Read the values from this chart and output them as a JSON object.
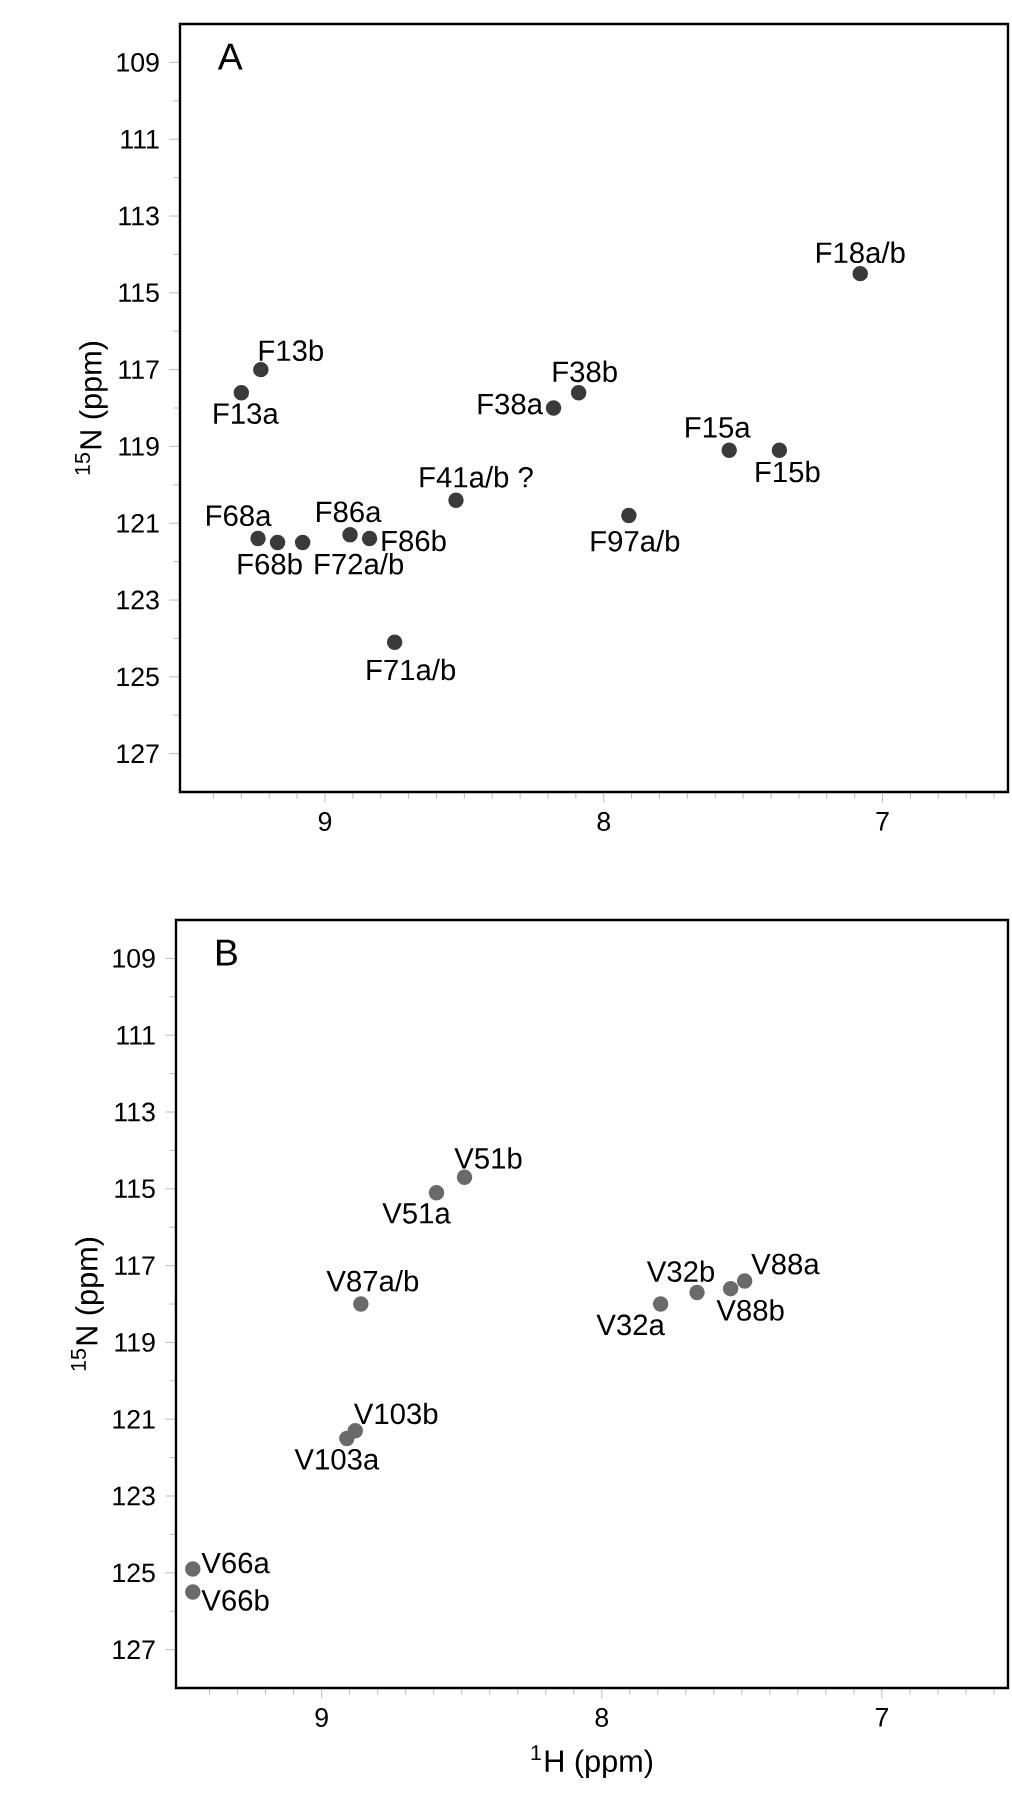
{
  "chart_data": [
    {
      "type": "scatter",
      "ylabel": "$^{15}$N (ppm)",
      "marker": "circle",
      "xlim": [
        9.52,
        6.55
      ],
      "ylim": [
        128,
        108
      ],
      "xticks": [
        9,
        8,
        7,
        {
          "value": 9.4,
          "label": null
        },
        {
          "value": 9.3,
          "label": null
        },
        {
          "value": 9.2,
          "label": null
        },
        {
          "value": 9.1,
          "label": null
        },
        {
          "value": 8.9,
          "label": null
        },
        {
          "value": 8.8,
          "label": null
        },
        {
          "value": 8.7,
          "label": null
        },
        {
          "value": 8.6,
          "label": null
        },
        {
          "value": 8.5,
          "label": null
        },
        {
          "value": 8.4,
          "label": null
        },
        {
          "value": 8.3,
          "label": null
        },
        {
          "value": 8.2,
          "label": null
        },
        {
          "value": 8.1,
          "label": null
        },
        {
          "value": 7.9,
          "label": null
        },
        {
          "value": 7.8,
          "label": null
        },
        {
          "value": 7.7,
          "label": null
        },
        {
          "value": 7.6,
          "label": null
        },
        {
          "value": 7.5,
          "label": null
        },
        {
          "value": 7.4,
          "label": null
        },
        {
          "value": 7.3,
          "label": null
        },
        {
          "value": 7.2,
          "label": null
        },
        {
          "value": 7.1,
          "label": null
        },
        {
          "value": 6.9,
          "label": null
        },
        {
          "value": 6.8,
          "label": null
        },
        {
          "value": 6.7,
          "label": null
        },
        {
          "value": 6.6,
          "label": null
        }
      ],
      "yticks": [
        109,
        111,
        113,
        115,
        117,
        119,
        121,
        123,
        125,
        127,
        {
          "value": 110,
          "label": null
        },
        {
          "value": 112,
          "label": null
        },
        {
          "value": 114,
          "label": null
        },
        {
          "value": 116,
          "label": null
        },
        {
          "value": 118,
          "label": null
        },
        {
          "value": 120,
          "label": null
        },
        {
          "value": 122,
          "label": null
        },
        {
          "value": 124,
          "label": null
        },
        {
          "value": 126,
          "label": null
        }
      ],
      "series": [
        {
          "color": "#3a3a3a",
          "x": [
            7.08,
            9.23,
            9.3,
            8.18,
            8.09,
            7.55,
            7.37,
            8.53,
            7.91,
            9.24,
            9.17,
            9.08,
            8.91,
            8.84,
            8.75
          ],
          "values": [
            114.5,
            117.0,
            117.6,
            118.0,
            117.6,
            119.1,
            119.1,
            120.4,
            120.8,
            121.4,
            121.5,
            121.5,
            121.3,
            121.4,
            124.1
          ]
        }
      ],
      "annotations": [
        "A",
        {
          "text": "F18a/b",
          "x": 7.08,
          "y": 114.5
        },
        {
          "text": "F13b",
          "x": 9.23,
          "y": 117.0
        },
        {
          "text": "F13a",
          "x": 9.3,
          "y": 117.6
        },
        {
          "text": "F38a",
          "x": 8.18,
          "y": 118.0
        },
        {
          "text": "F38b",
          "x": 8.09,
          "y": 117.6
        },
        {
          "text": "F15a",
          "x": 7.55,
          "y": 119.1
        },
        {
          "text": "F15b",
          "x": 7.37,
          "y": 119.1
        },
        {
          "text": "F41a/b ?",
          "x": 8.53,
          "y": 120.4
        },
        {
          "text": "F97a/b",
          "x": 7.91,
          "y": 120.8
        },
        {
          "text": "F68a",
          "x": 9.24,
          "y": 121.4
        },
        {
          "text": "F68b",
          "x": 9.17,
          "y": 121.5
        },
        {
          "text": "F72a/b",
          "x": 9.08,
          "y": 121.5
        },
        {
          "text": "F86a",
          "x": 8.91,
          "y": 121.3
        },
        {
          "text": "F86b",
          "x": 8.84,
          "y": 121.4
        },
        {
          "text": "F71a/b",
          "x": 8.75,
          "y": 124.1
        }
      ]
    },
    {
      "type": "scatter",
      "xlabel": "$^{1}$H (ppm)",
      "ylabel": "$^{15}$N (ppm)",
      "marker": "circle",
      "xlim": [
        9.52,
        6.55
      ],
      "ylim": [
        128,
        108
      ],
      "xticks": [
        9,
        8,
        7,
        {
          "value": 9.4,
          "label": null
        },
        {
          "value": 9.3,
          "label": null
        },
        {
          "value": 9.2,
          "label": null
        },
        {
          "value": 9.1,
          "label": null
        },
        {
          "value": 8.9,
          "label": null
        },
        {
          "value": 8.8,
          "label": null
        },
        {
          "value": 8.7,
          "label": null
        },
        {
          "value": 8.6,
          "label": null
        },
        {
          "value": 8.5,
          "label": null
        },
        {
          "value": 8.4,
          "label": null
        },
        {
          "value": 8.3,
          "label": null
        },
        {
          "value": 8.2,
          "label": null
        },
        {
          "value": 8.1,
          "label": null
        },
        {
          "value": 7.9,
          "label": null
        },
        {
          "value": 7.8,
          "label": null
        },
        {
          "value": 7.7,
          "label": null
        },
        {
          "value": 7.6,
          "label": null
        },
        {
          "value": 7.5,
          "label": null
        },
        {
          "value": 7.4,
          "label": null
        },
        {
          "value": 7.3,
          "label": null
        },
        {
          "value": 7.2,
          "label": null
        },
        {
          "value": 7.1,
          "label": null
        },
        {
          "value": 6.9,
          "label": null
        },
        {
          "value": 6.8,
          "label": null
        },
        {
          "value": 6.7,
          "label": null
        },
        {
          "value": 6.6,
          "label": null
        }
      ],
      "yticks": [
        109,
        111,
        113,
        115,
        117,
        119,
        121,
        123,
        125,
        127,
        {
          "value": 110,
          "label": null
        },
        {
          "value": 112,
          "label": null
        },
        {
          "value": 114,
          "label": null
        },
        {
          "value": 116,
          "label": null
        },
        {
          "value": 118,
          "label": null
        },
        {
          "value": 120,
          "label": null
        },
        {
          "value": 122,
          "label": null
        },
        {
          "value": 124,
          "label": null
        },
        {
          "value": 126,
          "label": null
        }
      ],
      "series": [
        {
          "color": "#6a6a6a",
          "x": [
            8.49,
            8.59,
            8.86,
            7.66,
            7.79,
            7.49,
            7.54,
            8.88,
            8.91,
            9.46,
            9.46
          ],
          "values": [
            114.7,
            115.1,
            118.0,
            117.7,
            118.0,
            117.4,
            117.6,
            121.3,
            121.5,
            124.9,
            125.5
          ]
        }
      ],
      "annotations": [
        "B",
        {
          "text": "V51b",
          "x": 8.49,
          "y": 114.7
        },
        {
          "text": "V51a",
          "x": 8.59,
          "y": 115.1
        },
        {
          "text": "V87a/b",
          "x": 8.86,
          "y": 118.0
        },
        {
          "text": "V32b",
          "x": 7.66,
          "y": 117.7
        },
        {
          "text": "V32a",
          "x": 7.79,
          "y": 118.0
        },
        {
          "text": "V88a",
          "x": 7.49,
          "y": 117.4
        },
        {
          "text": "V88b",
          "x": 7.54,
          "y": 117.6
        },
        {
          "text": "V103b",
          "x": 8.88,
          "y": 121.3
        },
        {
          "text": "V103a",
          "x": 8.91,
          "y": 121.5
        },
        {
          "text": "V66a",
          "x": 9.46,
          "y": 124.9
        },
        {
          "text": "V66b",
          "x": 9.46,
          "y": 125.5
        }
      ]
    }
  ]
}
